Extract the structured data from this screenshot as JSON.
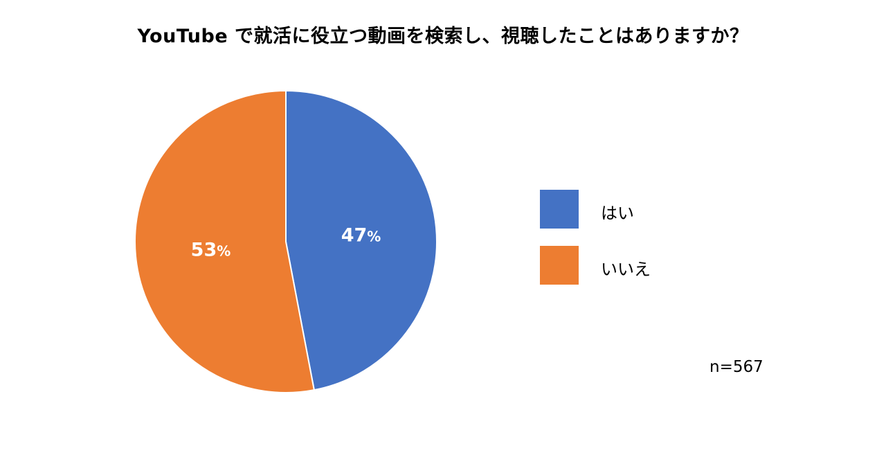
{
  "chart_data": {
    "type": "pie",
    "title": "YouTube で就活に役立つ動画を検索し、視聴したことはありますか？",
    "slices": [
      {
        "label": "はい",
        "value": 47,
        "display": "47",
        "color": "#4472C4"
      },
      {
        "label": "いいえ",
        "value": 53,
        "display": "53",
        "color": "#ED7D31"
      }
    ],
    "unit": "%",
    "legend_position": "right",
    "note": "n=567"
  }
}
